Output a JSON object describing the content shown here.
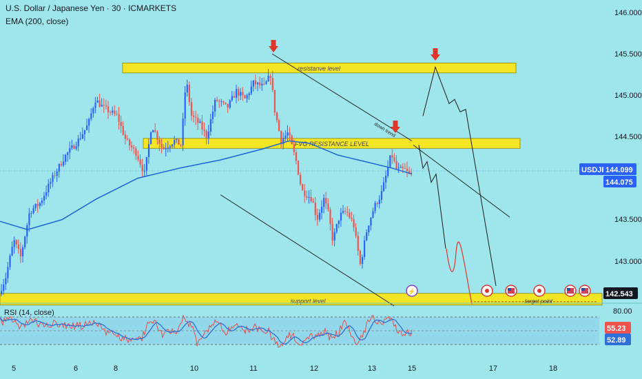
{
  "header": {
    "title": "U.S. Dollar / Japanese Yen · 30 · ICMARKETS",
    "indicator": "EMA (200, close)"
  },
  "colors": {
    "background": "#9ee6ec",
    "up_candle": "#2962ff",
    "down_candle": "#ef5350",
    "ema": "#1e63d6",
    "zone": "#f5e625",
    "projection_red": "#e0352b",
    "price_badge": "#2962ff",
    "rsi_line": "#e74c4c",
    "rsi_ma": "#2f6fd8"
  },
  "zones": {
    "resistance": "resistanve level",
    "fvg": "FVG RESISTANCE LEVEL",
    "support": "support level"
  },
  "annotations": {
    "down_trend": "down trend",
    "target": "target point"
  },
  "price_axis": {
    "ticks": [
      "146.000",
      "145.500",
      "145.000",
      "144.500",
      "143.500",
      "143.000"
    ],
    "symbol": "USDJPY",
    "last_price": "144.099",
    "price2": "144.075",
    "support_price": "142.543"
  },
  "time_axis": {
    "ticks": [
      "5",
      "6",
      "8",
      "10",
      "11",
      "12",
      "13",
      "15",
      "17",
      "18"
    ]
  },
  "rsi": {
    "label": "RSI (14, close)",
    "level_high": "80.00",
    "value": "55.23",
    "ma_value": "52.89"
  },
  "chart_data": {
    "type": "candlestick",
    "title": "U.S. Dollar / Japanese Yen · 30 · ICMARKETS",
    "y_range": [
      142.45,
      146.05
    ],
    "close_path": [
      [
        "5",
        142.6
      ],
      [
        "5",
        142.85
      ],
      [
        "5",
        143.3
      ],
      [
        "5",
        143.1
      ],
      [
        "6",
        143.9
      ],
      [
        "6",
        144.1
      ],
      [
        "6",
        144.55
      ],
      [
        "6",
        145.0
      ],
      [
        "8",
        144.6
      ],
      [
        "8",
        144.4
      ],
      [
        "8",
        144.2
      ],
      [
        "8",
        144.5
      ],
      [
        "10",
        144.3
      ],
      [
        "10",
        145.2
      ],
      [
        "10",
        144.7
      ],
      [
        "10",
        145.0
      ],
      [
        "11",
        145.2
      ],
      [
        "11",
        145.1
      ],
      [
        "11",
        145.3
      ],
      [
        "11",
        144.4
      ],
      [
        "12",
        144.0
      ],
      [
        "12",
        143.6
      ],
      [
        "12",
        143.3
      ],
      [
        "12",
        143.7
      ],
      [
        "13",
        143.0
      ],
      [
        "13",
        143.8
      ],
      [
        "13",
        144.3
      ],
      [
        "13",
        144.35
      ],
      [
        "15",
        144.1
      ]
    ],
    "ema_200": [
      143.5,
      143.45,
      143.7,
      144.1,
      144.3,
      144.45,
      144.5,
      144.45,
      144.2,
      144.15
    ],
    "resistance_zone": [
      145.27,
      145.39
    ],
    "fvg_zone": [
      144.36,
      144.48
    ],
    "support_zone": [
      142.47,
      142.61
    ],
    "projection_peak": 145.34,
    "projection_target": 142.5,
    "rsi_range": [
      20,
      80
    ]
  }
}
